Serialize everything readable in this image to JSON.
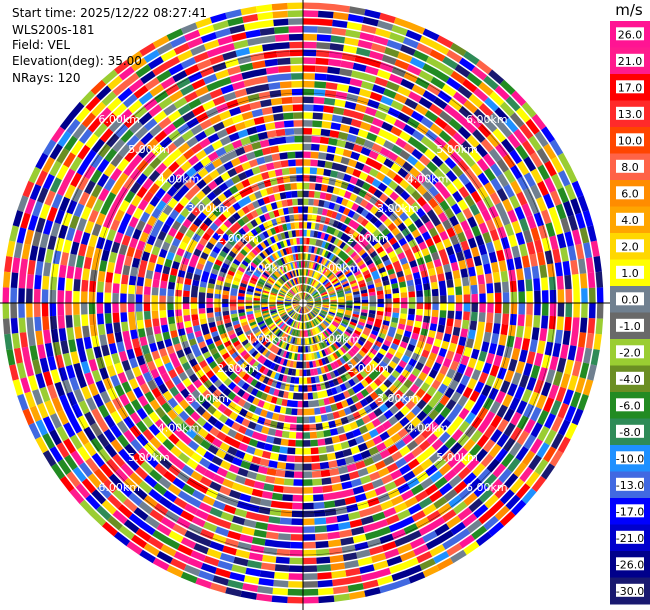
{
  "info": {
    "start_time": "Start time: 2025/12/22 08:27:41",
    "instrument": "WLS200s-181",
    "field": "Field: VEL",
    "elevation": "Elevation(deg): 35.00",
    "nrays": "NRays: 120"
  },
  "chart_data": {
    "type": "heatmap",
    "projection": "polar-ppi",
    "n_rays": 120,
    "elevation_deg": 35.0,
    "range_ring_labels": [
      "1.00km",
      "2.00km",
      "3.00km",
      "4.00km",
      "5.00km",
      "6.00km"
    ],
    "colorbar": {
      "unit": "m/s",
      "tick_labels": [
        "26.0",
        "21.0",
        "17.0",
        "13.0",
        "10.0",
        "8.0",
        "6.0",
        "4.0",
        "2.0",
        "1.0",
        "0.0",
        "-1.0",
        "-2.0",
        "-4.0",
        "-6.0",
        "-8.0",
        "-10.0",
        "-13.0",
        "-17.0",
        "-21.0",
        "-26.0",
        "-30.0"
      ],
      "colors": [
        "#ff1493",
        "#ff1b8d",
        "#ff0000",
        "#ff2a2a",
        "#ff4500",
        "#ff6347",
        "#ff8c00",
        "#ffa500",
        "#ffd700",
        "#ffff00",
        "#708090",
        "#696969",
        "#9acd32",
        "#6b8e23",
        "#228b22",
        "#2e8b57",
        "#1e90ff",
        "#4169e1",
        "#0000ff",
        "#0000cd",
        "#00008b",
        "#191970"
      ]
    }
  }
}
